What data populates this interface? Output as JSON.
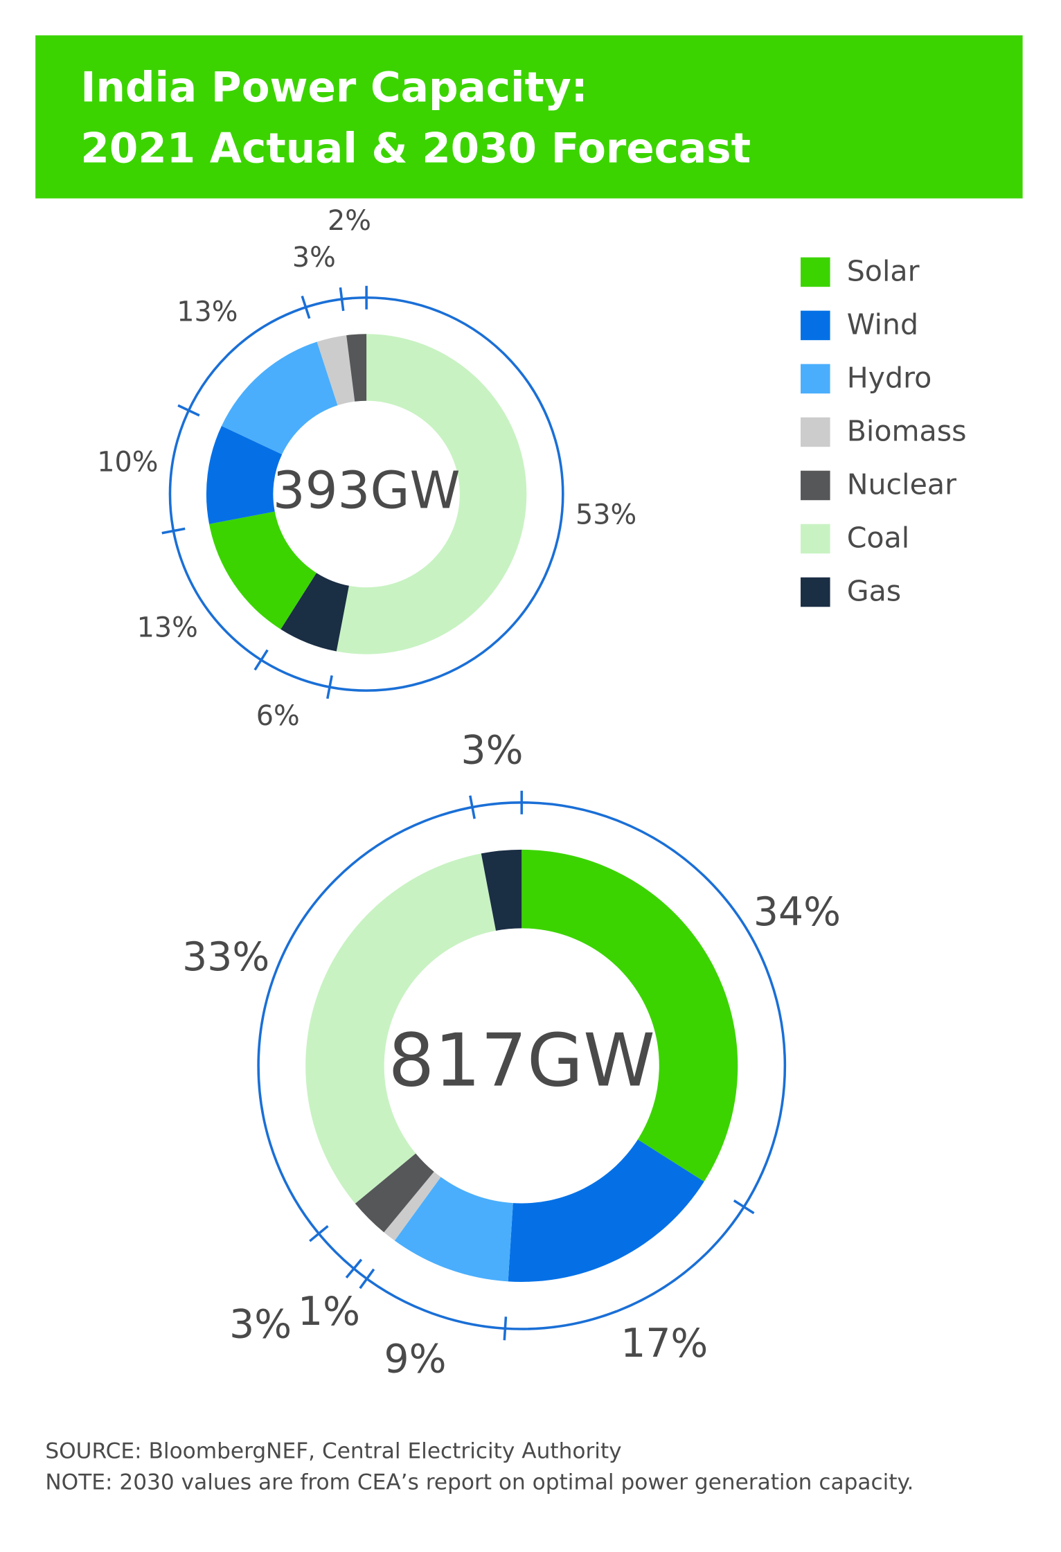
{
  "title": [
    "India Power Capacity:",
    "2021 Actual & 2030 Forecast"
  ],
  "chart_data": [
    {
      "type": "donut",
      "center_label": "393GW",
      "categories": [
        "Coal",
        "Gas",
        "Solar",
        "Wind",
        "Hydro",
        "Biomass",
        "Nuclear"
      ],
      "colors": [
        "#c8f2c2",
        "#1a2e44",
        "#3bd400",
        "#0570e6",
        "#4aaefc",
        "#cccccc",
        "#555759"
      ],
      "values": [
        53,
        6,
        13,
        10,
        13,
        3,
        2
      ],
      "value_labels": [
        "53%",
        "6%",
        "13%",
        "10%",
        "13%",
        "3%",
        "2%"
      ]
    },
    {
      "type": "donut",
      "center_label": "817GW",
      "categories": [
        "Solar",
        "Wind",
        "Hydro",
        "Biomass",
        "Nuclear",
        "Coal",
        "Gas"
      ],
      "colors": [
        "#3bd400",
        "#0570e6",
        "#4aaefc",
        "#cccccc",
        "#555759",
        "#c8f2c2",
        "#1a2e44"
      ],
      "values": [
        34,
        17,
        9,
        1,
        3,
        33,
        3
      ],
      "value_labels": [
        "34%",
        "17%",
        "9%",
        "1%",
        "3%",
        "33%",
        "3%"
      ]
    }
  ],
  "source": "SOURCE: BloombergNEF, Central Electricity Authority",
  "note": "NOTE: 2030 values are from CEA’s report on optimal power generation capacity."
}
